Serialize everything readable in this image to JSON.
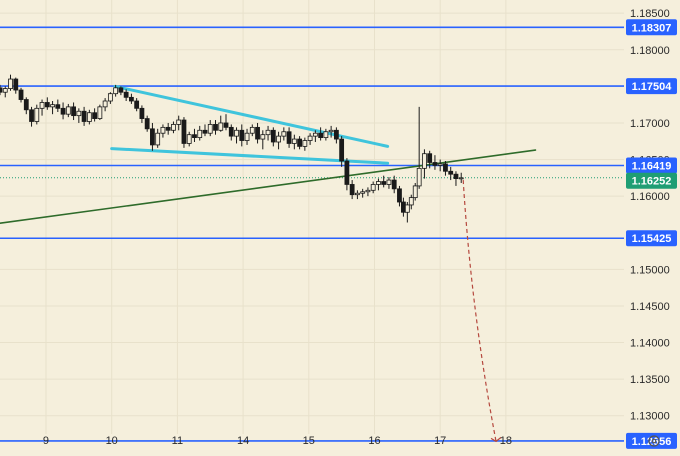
{
  "chart_data": {
    "type": "candlestick",
    "title": "",
    "xlabel": "",
    "ylabel": "",
    "ylim": [
      1.1245,
      1.1868
    ],
    "x_range_days": [
      8.3,
      18.65
    ],
    "y_ticks": [
      "1.18500",
      "1.18000",
      "1.17000",
      "1.16500",
      "1.16000",
      "1.15000",
      "1.14500",
      "1.14000",
      "1.13500",
      "1.13000"
    ],
    "x_ticks": [
      {
        "label": "9",
        "day": 9
      },
      {
        "label": "10",
        "day": 10
      },
      {
        "label": "11",
        "day": 11
      },
      {
        "label": "14",
        "day": 12
      },
      {
        "label": "15",
        "day": 13
      },
      {
        "label": "16",
        "day": 14
      },
      {
        "label": "17",
        "day": 15
      },
      {
        "label": "18",
        "day": 16
      }
    ],
    "levels": [
      {
        "label": "1.18307",
        "value": 1.18307,
        "color": "#2962ff"
      },
      {
        "label": "1.17504",
        "value": 1.17504,
        "color": "#2962ff"
      },
      {
        "label": "1.16419",
        "value": 1.16419,
        "color": "#2962ff"
      },
      {
        "label": "1.15425",
        "value": 1.15425,
        "color": "#2962ff"
      },
      {
        "label": "1.12656",
        "value": 1.12656,
        "color": "#2962ff"
      }
    ],
    "current_price": {
      "label": "1.16252",
      "value": 1.16252,
      "color": "#1f9e74"
    },
    "trendlines": [
      {
        "name": "",
        "color": "#3fc4dc",
        "points": [
          [
            10.05,
            1.175
          ],
          [
            14.2,
            1.1668
          ]
        ]
      },
      {
        "name": "",
        "color": "#3fc4dc",
        "points": [
          [
            10.0,
            1.1665
          ],
          [
            14.2,
            1.1645
          ]
        ]
      },
      {
        "name": "",
        "color": "#2e6b2a",
        "points": [
          [
            8.3,
            1.1563
          ],
          [
            16.45,
            1.1663
          ]
        ]
      }
    ],
    "projection": {
      "color": "#b5483e",
      "points": [
        [
          15.35,
          1.1622
        ],
        [
          15.85,
          1.1265
        ]
      ]
    },
    "candles": [
      [
        8.3,
        1.1748,
        1.1752,
        1.1738,
        1.1742
      ],
      [
        8.38,
        1.1742,
        1.175,
        1.1735,
        1.1747
      ],
      [
        8.46,
        1.1747,
        1.1766,
        1.1744,
        1.176
      ],
      [
        8.54,
        1.176,
        1.1762,
        1.174,
        1.1745
      ],
      [
        8.62,
        1.1745,
        1.1748,
        1.1728,
        1.1732
      ],
      [
        8.7,
        1.1732,
        1.1735,
        1.1712,
        1.1718
      ],
      [
        8.78,
        1.1718,
        1.1722,
        1.1695,
        1.1702
      ],
      [
        8.86,
        1.1702,
        1.1725,
        1.1698,
        1.172
      ],
      [
        8.94,
        1.172,
        1.1732,
        1.171,
        1.1728
      ],
      [
        9.02,
        1.1728,
        1.1735,
        1.1718,
        1.1722
      ],
      [
        9.1,
        1.1722,
        1.173,
        1.1712,
        1.1725
      ],
      [
        9.18,
        1.1725,
        1.1732,
        1.1715,
        1.172
      ],
      [
        9.26,
        1.172,
        1.1728,
        1.1705,
        1.1712
      ],
      [
        9.34,
        1.1712,
        1.1726,
        1.1708,
        1.1722
      ],
      [
        9.42,
        1.1722,
        1.1728,
        1.1704,
        1.171
      ],
      [
        9.5,
        1.171,
        1.172,
        1.17,
        1.1716
      ],
      [
        9.58,
        1.1716,
        1.1722,
        1.1696,
        1.1702
      ],
      [
        9.66,
        1.1702,
        1.1718,
        1.1698,
        1.1714
      ],
      [
        9.74,
        1.1714,
        1.172,
        1.1702,
        1.1706
      ],
      [
        9.82,
        1.1706,
        1.1725,
        1.1704,
        1.1722
      ],
      [
        9.9,
        1.1722,
        1.1734,
        1.1716,
        1.173
      ],
      [
        9.98,
        1.173,
        1.1742,
        1.1726,
        1.174
      ],
      [
        10.06,
        1.174,
        1.1752,
        1.1736,
        1.1748
      ],
      [
        10.14,
        1.1748,
        1.175,
        1.1738,
        1.1742
      ],
      [
        10.22,
        1.1742,
        1.1746,
        1.173,
        1.1735
      ],
      [
        10.3,
        1.1735,
        1.174,
        1.1726,
        1.173
      ],
      [
        10.38,
        1.173,
        1.1734,
        1.1716,
        1.172
      ],
      [
        10.46,
        1.172,
        1.1724,
        1.17,
        1.1706
      ],
      [
        10.54,
        1.1706,
        1.171,
        1.1688,
        1.1692
      ],
      [
        10.62,
        1.1692,
        1.17,
        1.1662,
        1.167
      ],
      [
        10.7,
        1.167,
        1.1692,
        1.1666,
        1.1686
      ],
      [
        10.78,
        1.1686,
        1.1698,
        1.168,
        1.1694
      ],
      [
        10.86,
        1.1694,
        1.17,
        1.1684,
        1.169
      ],
      [
        10.94,
        1.169,
        1.1702,
        1.1686,
        1.1698
      ],
      [
        11.02,
        1.1698,
        1.171,
        1.169,
        1.1704
      ],
      [
        11.1,
        1.1704,
        1.1708,
        1.1666,
        1.1672
      ],
      [
        11.18,
        1.1672,
        1.1688,
        1.1668,
        1.1684
      ],
      [
        11.26,
        1.1684,
        1.1692,
        1.1674,
        1.168
      ],
      [
        11.34,
        1.168,
        1.1696,
        1.1676,
        1.169
      ],
      [
        11.42,
        1.169,
        1.1698,
        1.1682,
        1.1686
      ],
      [
        11.5,
        1.1686,
        1.1704,
        1.1682,
        1.1698
      ],
      [
        11.58,
        1.1698,
        1.1704,
        1.1684,
        1.169
      ],
      [
        11.66,
        1.169,
        1.171,
        1.1688,
        1.17
      ],
      [
        11.74,
        1.17,
        1.1712,
        1.169,
        1.1694
      ],
      [
        11.82,
        1.1694,
        1.1698,
        1.1676,
        1.1682
      ],
      [
        11.9,
        1.1682,
        1.1694,
        1.1672,
        1.169
      ],
      [
        11.98,
        1.169,
        1.1698,
        1.1668,
        1.1676
      ],
      [
        12.06,
        1.1676,
        1.1692,
        1.167,
        1.1686
      ],
      [
        12.14,
        1.1686,
        1.1698,
        1.1682,
        1.1694
      ],
      [
        12.22,
        1.1694,
        1.17,
        1.1672,
        1.1678
      ],
      [
        12.3,
        1.1678,
        1.169,
        1.1664,
        1.1684
      ],
      [
        12.38,
        1.1684,
        1.1696,
        1.1676,
        1.169
      ],
      [
        12.46,
        1.169,
        1.1694,
        1.1668,
        1.1674
      ],
      [
        12.54,
        1.1674,
        1.1688,
        1.1664,
        1.1682
      ],
      [
        12.62,
        1.1682,
        1.1694,
        1.1676,
        1.1688
      ],
      [
        12.7,
        1.1688,
        1.1694,
        1.1666,
        1.1672
      ],
      [
        12.78,
        1.1672,
        1.1684,
        1.1664,
        1.1678
      ],
      [
        12.86,
        1.1678,
        1.1682,
        1.1664,
        1.1668
      ],
      [
        12.94,
        1.1668,
        1.168,
        1.1662,
        1.1676
      ],
      [
        13.02,
        1.1676,
        1.1686,
        1.167,
        1.1682
      ],
      [
        13.1,
        1.1682,
        1.169,
        1.1674,
        1.1686
      ],
      [
        13.18,
        1.1686,
        1.1694,
        1.1676,
        1.168
      ],
      [
        13.26,
        1.168,
        1.1692,
        1.1676,
        1.1688
      ],
      [
        13.34,
        1.1688,
        1.1696,
        1.168,
        1.169
      ],
      [
        13.42,
        1.169,
        1.1694,
        1.1672,
        1.1678
      ],
      [
        13.5,
        1.1678,
        1.1682,
        1.164,
        1.1648
      ],
      [
        13.58,
        1.1648,
        1.1652,
        1.1608,
        1.1616
      ],
      [
        13.66,
        1.1616,
        1.1622,
        1.1596,
        1.1602
      ],
      [
        13.74,
        1.1602,
        1.1608,
        1.1596,
        1.1604
      ],
      [
        13.82,
        1.1604,
        1.161,
        1.1598,
        1.1606
      ],
      [
        13.9,
        1.1606,
        1.1612,
        1.16,
        1.1608
      ],
      [
        13.98,
        1.1608,
        1.162,
        1.1604,
        1.1616
      ],
      [
        14.06,
        1.1616,
        1.1624,
        1.1608,
        1.162
      ],
      [
        14.14,
        1.162,
        1.1628,
        1.1612,
        1.1616
      ],
      [
        14.22,
        1.1616,
        1.1626,
        1.161,
        1.1622
      ],
      [
        14.3,
        1.1622,
        1.1628,
        1.1604,
        1.161
      ],
      [
        14.38,
        1.161,
        1.1614,
        1.1586,
        1.1592
      ],
      [
        14.44,
        1.1592,
        1.1598,
        1.1572,
        1.1578
      ],
      [
        14.5,
        1.1578,
        1.1592,
        1.1564,
        1.1588
      ],
      [
        14.56,
        1.1588,
        1.1602,
        1.1582,
        1.1598
      ],
      [
        14.62,
        1.1598,
        1.1618,
        1.1594,
        1.1614
      ],
      [
        14.68,
        1.1614,
        1.1722,
        1.161,
        1.1638
      ],
      [
        14.76,
        1.1638,
        1.1664,
        1.1624,
        1.1658
      ],
      [
        14.84,
        1.1658,
        1.1662,
        1.1638,
        1.1646
      ],
      [
        14.92,
        1.1646,
        1.1656,
        1.1636,
        1.1642
      ],
      [
        15.0,
        1.1642,
        1.165,
        1.1634,
        1.1644
      ],
      [
        15.08,
        1.1644,
        1.1648,
        1.1628,
        1.1634
      ],
      [
        15.16,
        1.1634,
        1.164,
        1.1622,
        1.163
      ],
      [
        15.24,
        1.163,
        1.1634,
        1.1614,
        1.1624
      ],
      [
        15.32,
        1.1624,
        1.1632,
        1.1618,
        1.1625
      ]
    ]
  },
  "settings_icon": "gear-icon"
}
